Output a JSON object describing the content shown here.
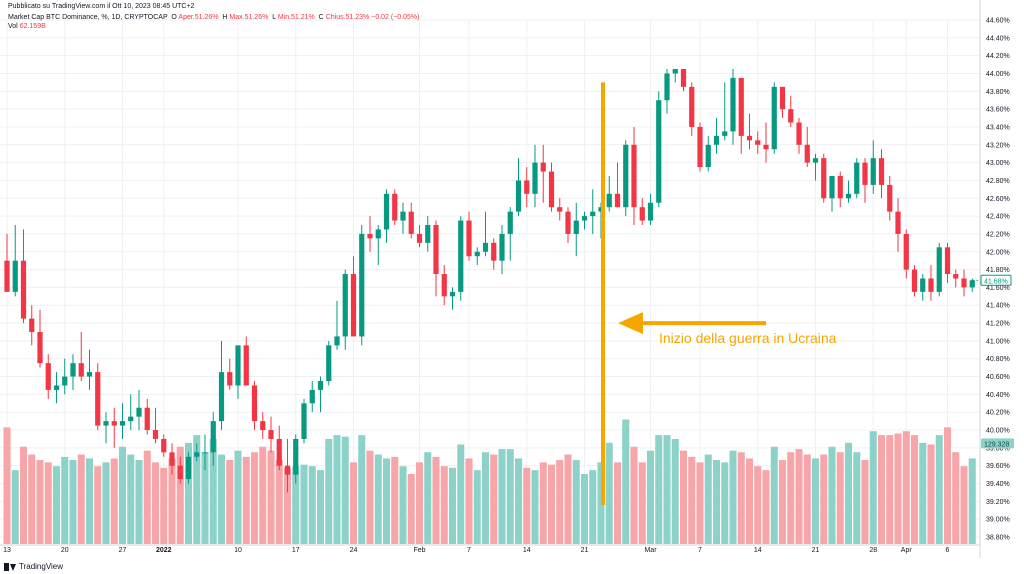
{
  "header": {
    "published": "Pubblicato su TradingView.com il Ott 10, 2023 08:45 UTC+2",
    "symbol": "Market Cap BTC Dominance, %, 1D, CRYPTOCAP",
    "open_label": "O",
    "open_text": "Aper.51.26%",
    "high_label": "H",
    "high_text": "Max.51.26%",
    "low_label": "L",
    "low_text": "Min.51.21%",
    "close_label": "C",
    "close_text": "Chius.51.23%",
    "change_text": "−0.02 (−0.05%)",
    "vol_label": "Vol",
    "vol_value": "62.159B"
  },
  "footer": {
    "brand": "TradingView"
  },
  "annotation": {
    "text": "Inizio della guerra in Ucraina"
  },
  "colors": {
    "up": "#089981",
    "down": "#f23645",
    "vol_up": "#8dd2c9",
    "vol_down": "#f7a5a9",
    "annotation": "#f7a600"
  },
  "chart_data": {
    "type": "candlestick",
    "y_unit": "%",
    "ylim": [
      38.8,
      44.6
    ],
    "yticks": [
      44.6,
      44.4,
      44.2,
      44.0,
      43.8,
      43.6,
      43.4,
      43.2,
      43.0,
      42.8,
      42.6,
      42.4,
      42.2,
      42.0,
      41.8,
      41.6,
      41.4,
      41.2,
      41.0,
      40.8,
      40.6,
      40.4,
      40.2,
      40.0,
      39.8,
      39.6,
      39.4,
      39.2,
      39.0,
      38.8
    ],
    "ytick_labels": [
      "44.60%",
      "44.40%",
      "44.20%",
      "44.00%",
      "43.80%",
      "43.60%",
      "43.40%",
      "43.20%",
      "43.00%",
      "42.80%",
      "42.60%",
      "42.40%",
      "42.20%",
      "42.00%",
      "41.80%",
      "41.60%",
      "41.40%",
      "41.20%",
      "41.00%",
      "40.80%",
      "40.60%",
      "40.40%",
      "40.20%",
      "40.00%",
      "39.80%",
      "39.60%",
      "39.40%",
      "39.20%",
      "39.00%",
      "38.80%"
    ],
    "xtick_labels": [
      {
        "i": 0,
        "label": "13"
      },
      {
        "i": 7,
        "label": "20"
      },
      {
        "i": 14,
        "label": "27"
      },
      {
        "i": 19,
        "label": "2022"
      },
      {
        "i": 28,
        "label": "10"
      },
      {
        "i": 35,
        "label": "17"
      },
      {
        "i": 42,
        "label": "24"
      },
      {
        "i": 50,
        "label": "Feb"
      },
      {
        "i": 56,
        "label": "7"
      },
      {
        "i": 63,
        "label": "14"
      },
      {
        "i": 70,
        "label": "21"
      },
      {
        "i": 78,
        "label": "Mar"
      },
      {
        "i": 84,
        "label": "7"
      },
      {
        "i": 91,
        "label": "14"
      },
      {
        "i": 98,
        "label": "21"
      },
      {
        "i": 105,
        "label": "28"
      },
      {
        "i": 109,
        "label": "Apr"
      },
      {
        "i": 114,
        "label": "6"
      }
    ],
    "last_price_label": "41.68%",
    "last_price": 41.68,
    "volume_label": "129.328",
    "volume_ylim": [
      0,
      180
    ],
    "volume_label_value": 129.328,
    "grid": true,
    "annotation_index": 72,
    "annotation_ymax": 43.9,
    "candles": [
      {
        "o": 41.9,
        "h": 42.2,
        "l": 41.55,
        "c": 41.55,
        "v": 150
      },
      {
        "o": 41.55,
        "h": 42.3,
        "l": 41.5,
        "c": 41.9,
        "v": 95
      },
      {
        "o": 41.9,
        "h": 42.25,
        "l": 41.2,
        "c": 41.25,
        "v": 125
      },
      {
        "o": 41.25,
        "h": 41.4,
        "l": 40.95,
        "c": 41.1,
        "v": 115
      },
      {
        "o": 41.1,
        "h": 41.35,
        "l": 40.7,
        "c": 40.75,
        "v": 108
      },
      {
        "o": 40.75,
        "h": 40.85,
        "l": 40.35,
        "c": 40.45,
        "v": 105
      },
      {
        "o": 40.45,
        "h": 40.65,
        "l": 40.3,
        "c": 40.5,
        "v": 100
      },
      {
        "o": 40.5,
        "h": 40.8,
        "l": 40.4,
        "c": 40.6,
        "v": 112
      },
      {
        "o": 40.6,
        "h": 40.85,
        "l": 40.45,
        "c": 40.75,
        "v": 108
      },
      {
        "o": 40.75,
        "h": 41.1,
        "l": 40.55,
        "c": 40.6,
        "v": 115
      },
      {
        "o": 40.6,
        "h": 40.9,
        "l": 40.45,
        "c": 40.65,
        "v": 110
      },
      {
        "o": 40.65,
        "h": 40.75,
        "l": 40.0,
        "c": 40.05,
        "v": 100
      },
      {
        "o": 40.05,
        "h": 40.2,
        "l": 39.85,
        "c": 40.1,
        "v": 105
      },
      {
        "o": 40.1,
        "h": 40.25,
        "l": 39.8,
        "c": 40.05,
        "v": 110
      },
      {
        "o": 40.05,
        "h": 40.3,
        "l": 39.9,
        "c": 40.1,
        "v": 125
      },
      {
        "o": 40.1,
        "h": 40.4,
        "l": 40.0,
        "c": 40.15,
        "v": 115
      },
      {
        "o": 40.15,
        "h": 40.45,
        "l": 40.0,
        "c": 40.25,
        "v": 108
      },
      {
        "o": 40.25,
        "h": 40.35,
        "l": 39.95,
        "c": 40.0,
        "v": 120
      },
      {
        "o": 40.0,
        "h": 40.25,
        "l": 39.85,
        "c": 39.9,
        "v": 105
      },
      {
        "o": 39.9,
        "h": 39.95,
        "l": 39.7,
        "c": 39.75,
        "v": 98
      },
      {
        "o": 39.75,
        "h": 39.85,
        "l": 39.5,
        "c": 39.6,
        "v": 110
      },
      {
        "o": 39.6,
        "h": 39.7,
        "l": 39.4,
        "c": 39.45,
        "v": 125
      },
      {
        "o": 39.45,
        "h": 39.75,
        "l": 39.4,
        "c": 39.7,
        "v": 130
      },
      {
        "o": 39.7,
        "h": 39.85,
        "l": 39.65,
        "c": 39.75,
        "v": 140
      },
      {
        "o": 39.75,
        "h": 39.95,
        "l": 39.55,
        "c": 39.75,
        "v": 118
      },
      {
        "o": 39.75,
        "h": 40.2,
        "l": 39.6,
        "c": 40.1,
        "v": 135
      },
      {
        "o": 40.1,
        "h": 41.0,
        "l": 40.0,
        "c": 40.65,
        "v": 115
      },
      {
        "o": 40.65,
        "h": 40.8,
        "l": 40.45,
        "c": 40.5,
        "v": 108
      },
      {
        "o": 40.5,
        "h": 40.95,
        "l": 40.35,
        "c": 40.95,
        "v": 120
      },
      {
        "o": 40.95,
        "h": 41.05,
        "l": 40.5,
        "c": 40.5,
        "v": 112
      },
      {
        "o": 40.5,
        "h": 40.55,
        "l": 40.0,
        "c": 40.1,
        "v": 118
      },
      {
        "o": 40.1,
        "h": 40.2,
        "l": 39.9,
        "c": 40.0,
        "v": 125
      },
      {
        "o": 40.0,
        "h": 40.15,
        "l": 39.75,
        "c": 39.9,
        "v": 120
      },
      {
        "o": 39.9,
        "h": 40.05,
        "l": 39.55,
        "c": 39.6,
        "v": 108
      },
      {
        "o": 39.6,
        "h": 39.9,
        "l": 39.3,
        "c": 39.5,
        "v": 98
      },
      {
        "o": 39.5,
        "h": 39.95,
        "l": 39.4,
        "c": 39.9,
        "v": 100
      },
      {
        "o": 39.9,
        "h": 40.35,
        "l": 39.85,
        "c": 40.3,
        "v": 102
      },
      {
        "o": 40.3,
        "h": 40.55,
        "l": 40.2,
        "c": 40.45,
        "v": 100
      },
      {
        "o": 40.45,
        "h": 40.6,
        "l": 40.2,
        "c": 40.55,
        "v": 95
      },
      {
        "o": 40.55,
        "h": 41.0,
        "l": 40.5,
        "c": 40.95,
        "v": 135
      },
      {
        "o": 40.95,
        "h": 41.45,
        "l": 40.9,
        "c": 41.05,
        "v": 140
      },
      {
        "o": 41.05,
        "h": 41.8,
        "l": 40.9,
        "c": 41.75,
        "v": 138
      },
      {
        "o": 41.75,
        "h": 41.95,
        "l": 41.1,
        "c": 41.05,
        "v": 105
      },
      {
        "o": 41.05,
        "h": 42.3,
        "l": 40.95,
        "c": 42.2,
        "v": 140
      },
      {
        "o": 42.2,
        "h": 42.4,
        "l": 42.0,
        "c": 42.15,
        "v": 120
      },
      {
        "o": 42.15,
        "h": 42.3,
        "l": 41.85,
        "c": 42.25,
        "v": 115
      },
      {
        "o": 42.25,
        "h": 42.7,
        "l": 42.1,
        "c": 42.65,
        "v": 110
      },
      {
        "o": 42.65,
        "h": 42.7,
        "l": 42.3,
        "c": 42.35,
        "v": 112
      },
      {
        "o": 42.35,
        "h": 42.55,
        "l": 42.2,
        "c": 42.45,
        "v": 100
      },
      {
        "o": 42.45,
        "h": 42.55,
        "l": 42.15,
        "c": 42.2,
        "v": 90
      },
      {
        "o": 42.2,
        "h": 42.3,
        "l": 42.05,
        "c": 42.1,
        "v": 105
      },
      {
        "o": 42.1,
        "h": 42.4,
        "l": 42.0,
        "c": 42.3,
        "v": 118
      },
      {
        "o": 42.3,
        "h": 42.35,
        "l": 41.5,
        "c": 41.75,
        "v": 112
      },
      {
        "o": 41.75,
        "h": 41.85,
        "l": 41.4,
        "c": 41.5,
        "v": 100
      },
      {
        "o": 41.5,
        "h": 41.6,
        "l": 41.35,
        "c": 41.55,
        "v": 98
      },
      {
        "o": 41.55,
        "h": 42.4,
        "l": 41.45,
        "c": 42.35,
        "v": 128
      },
      {
        "o": 42.35,
        "h": 42.45,
        "l": 41.9,
        "c": 41.95,
        "v": 110
      },
      {
        "o": 41.95,
        "h": 42.05,
        "l": 41.85,
        "c": 42.0,
        "v": 95
      },
      {
        "o": 42.0,
        "h": 42.45,
        "l": 41.95,
        "c": 42.1,
        "v": 118
      },
      {
        "o": 42.1,
        "h": 42.15,
        "l": 41.8,
        "c": 41.9,
        "v": 115
      },
      {
        "o": 41.9,
        "h": 42.3,
        "l": 41.75,
        "c": 42.2,
        "v": 122
      },
      {
        "o": 42.2,
        "h": 42.5,
        "l": 41.9,
        "c": 42.45,
        "v": 122
      },
      {
        "o": 42.45,
        "h": 43.05,
        "l": 42.4,
        "c": 42.8,
        "v": 110
      },
      {
        "o": 42.8,
        "h": 42.95,
        "l": 42.5,
        "c": 42.65,
        "v": 98
      },
      {
        "o": 42.65,
        "h": 43.2,
        "l": 42.5,
        "c": 43.0,
        "v": 95
      },
      {
        "o": 43.0,
        "h": 43.2,
        "l": 42.55,
        "c": 42.9,
        "v": 105
      },
      {
        "o": 42.9,
        "h": 43.0,
        "l": 42.45,
        "c": 42.5,
        "v": 102
      },
      {
        "o": 42.5,
        "h": 42.6,
        "l": 42.35,
        "c": 42.45,
        "v": 108
      },
      {
        "o": 42.45,
        "h": 42.5,
        "l": 42.1,
        "c": 42.2,
        "v": 115
      },
      {
        "o": 42.2,
        "h": 42.55,
        "l": 41.95,
        "c": 42.35,
        "v": 108
      },
      {
        "o": 42.35,
        "h": 42.45,
        "l": 42.25,
        "c": 42.4,
        "v": 90
      },
      {
        "o": 42.4,
        "h": 42.7,
        "l": 42.2,
        "c": 42.45,
        "v": 95
      },
      {
        "o": 42.45,
        "h": 42.55,
        "l": 42.15,
        "c": 42.5,
        "v": 105
      },
      {
        "o": 42.5,
        "h": 42.85,
        "l": 42.45,
        "c": 42.65,
        "v": 130
      },
      {
        "o": 42.65,
        "h": 43.0,
        "l": 42.5,
        "c": 42.5,
        "v": 105
      },
      {
        "o": 42.5,
        "h": 43.25,
        "l": 42.4,
        "c": 43.2,
        "v": 160
      },
      {
        "o": 43.2,
        "h": 43.4,
        "l": 42.3,
        "c": 42.5,
        "v": 125
      },
      {
        "o": 42.5,
        "h": 42.6,
        "l": 42.3,
        "c": 42.35,
        "v": 105
      },
      {
        "o": 42.35,
        "h": 42.65,
        "l": 42.3,
        "c": 42.55,
        "v": 120
      },
      {
        "o": 42.55,
        "h": 43.8,
        "l": 42.5,
        "c": 43.7,
        "v": 140
      },
      {
        "o": 43.7,
        "h": 44.05,
        "l": 43.55,
        "c": 44.0,
        "v": 140
      },
      {
        "o": 44.0,
        "h": 44.05,
        "l": 43.9,
        "c": 44.05,
        "v": 135
      },
      {
        "o": 44.05,
        "h": 44.05,
        "l": 43.8,
        "c": 43.85,
        "v": 120
      },
      {
        "o": 43.85,
        "h": 43.9,
        "l": 43.3,
        "c": 43.4,
        "v": 112
      },
      {
        "o": 43.4,
        "h": 43.45,
        "l": 42.9,
        "c": 42.95,
        "v": 105
      },
      {
        "o": 42.95,
        "h": 43.3,
        "l": 42.9,
        "c": 43.2,
        "v": 115
      },
      {
        "o": 43.2,
        "h": 43.5,
        "l": 43.1,
        "c": 43.3,
        "v": 108
      },
      {
        "o": 43.3,
        "h": 43.9,
        "l": 43.25,
        "c": 43.35,
        "v": 105
      },
      {
        "o": 43.35,
        "h": 44.05,
        "l": 43.2,
        "c": 43.95,
        "v": 120
      },
      {
        "o": 43.95,
        "h": 43.95,
        "l": 43.1,
        "c": 43.3,
        "v": 118
      },
      {
        "o": 43.3,
        "h": 43.55,
        "l": 43.15,
        "c": 43.25,
        "v": 110
      },
      {
        "o": 43.25,
        "h": 43.35,
        "l": 43.1,
        "c": 43.2,
        "v": 100
      },
      {
        "o": 43.2,
        "h": 43.45,
        "l": 43.0,
        "c": 43.15,
        "v": 95
      },
      {
        "o": 43.15,
        "h": 43.9,
        "l": 43.1,
        "c": 43.85,
        "v": 125
      },
      {
        "o": 43.85,
        "h": 43.85,
        "l": 43.5,
        "c": 43.6,
        "v": 108
      },
      {
        "o": 43.6,
        "h": 43.75,
        "l": 43.4,
        "c": 43.45,
        "v": 118
      },
      {
        "o": 43.45,
        "h": 43.5,
        "l": 43.1,
        "c": 43.2,
        "v": 122
      },
      {
        "o": 43.2,
        "h": 43.4,
        "l": 42.95,
        "c": 43.0,
        "v": 115
      },
      {
        "o": 43.0,
        "h": 43.1,
        "l": 42.8,
        "c": 43.05,
        "v": 110
      },
      {
        "o": 43.05,
        "h": 43.1,
        "l": 42.55,
        "c": 42.6,
        "v": 115
      },
      {
        "o": 42.6,
        "h": 42.85,
        "l": 42.45,
        "c": 42.85,
        "v": 125
      },
      {
        "o": 42.85,
        "h": 42.9,
        "l": 42.5,
        "c": 42.6,
        "v": 118
      },
      {
        "o": 42.6,
        "h": 42.8,
        "l": 42.55,
        "c": 42.65,
        "v": 130
      },
      {
        "o": 42.65,
        "h": 43.05,
        "l": 42.6,
        "c": 43.0,
        "v": 118
      },
      {
        "o": 43.0,
        "h": 43.05,
        "l": 42.55,
        "c": 42.75,
        "v": 108
      },
      {
        "o": 42.75,
        "h": 43.25,
        "l": 42.65,
        "c": 43.05,
        "v": 145
      },
      {
        "o": 43.05,
        "h": 43.15,
        "l": 42.6,
        "c": 42.75,
        "v": 140
      },
      {
        "o": 42.75,
        "h": 42.85,
        "l": 42.35,
        "c": 42.45,
        "v": 140
      },
      {
        "o": 42.45,
        "h": 42.6,
        "l": 42.0,
        "c": 42.2,
        "v": 142
      },
      {
        "o": 42.2,
        "h": 42.25,
        "l": 41.7,
        "c": 41.8,
        "v": 145
      },
      {
        "o": 41.8,
        "h": 41.85,
        "l": 41.5,
        "c": 41.55,
        "v": 140
      },
      {
        "o": 41.55,
        "h": 41.75,
        "l": 41.45,
        "c": 41.7,
        "v": 130
      },
      {
        "o": 41.7,
        "h": 41.85,
        "l": 41.45,
        "c": 41.55,
        "v": 128
      },
      {
        "o": 41.55,
        "h": 42.1,
        "l": 41.5,
        "c": 42.05,
        "v": 140
      },
      {
        "o": 42.05,
        "h": 42.1,
        "l": 41.65,
        "c": 41.75,
        "v": 150
      },
      {
        "o": 41.75,
        "h": 41.8,
        "l": 41.6,
        "c": 41.7,
        "v": 118
      },
      {
        "o": 41.7,
        "h": 41.8,
        "l": 41.5,
        "c": 41.6,
        "v": 100
      },
      {
        "o": 41.6,
        "h": 41.7,
        "l": 41.55,
        "c": 41.68,
        "v": 110
      }
    ]
  }
}
